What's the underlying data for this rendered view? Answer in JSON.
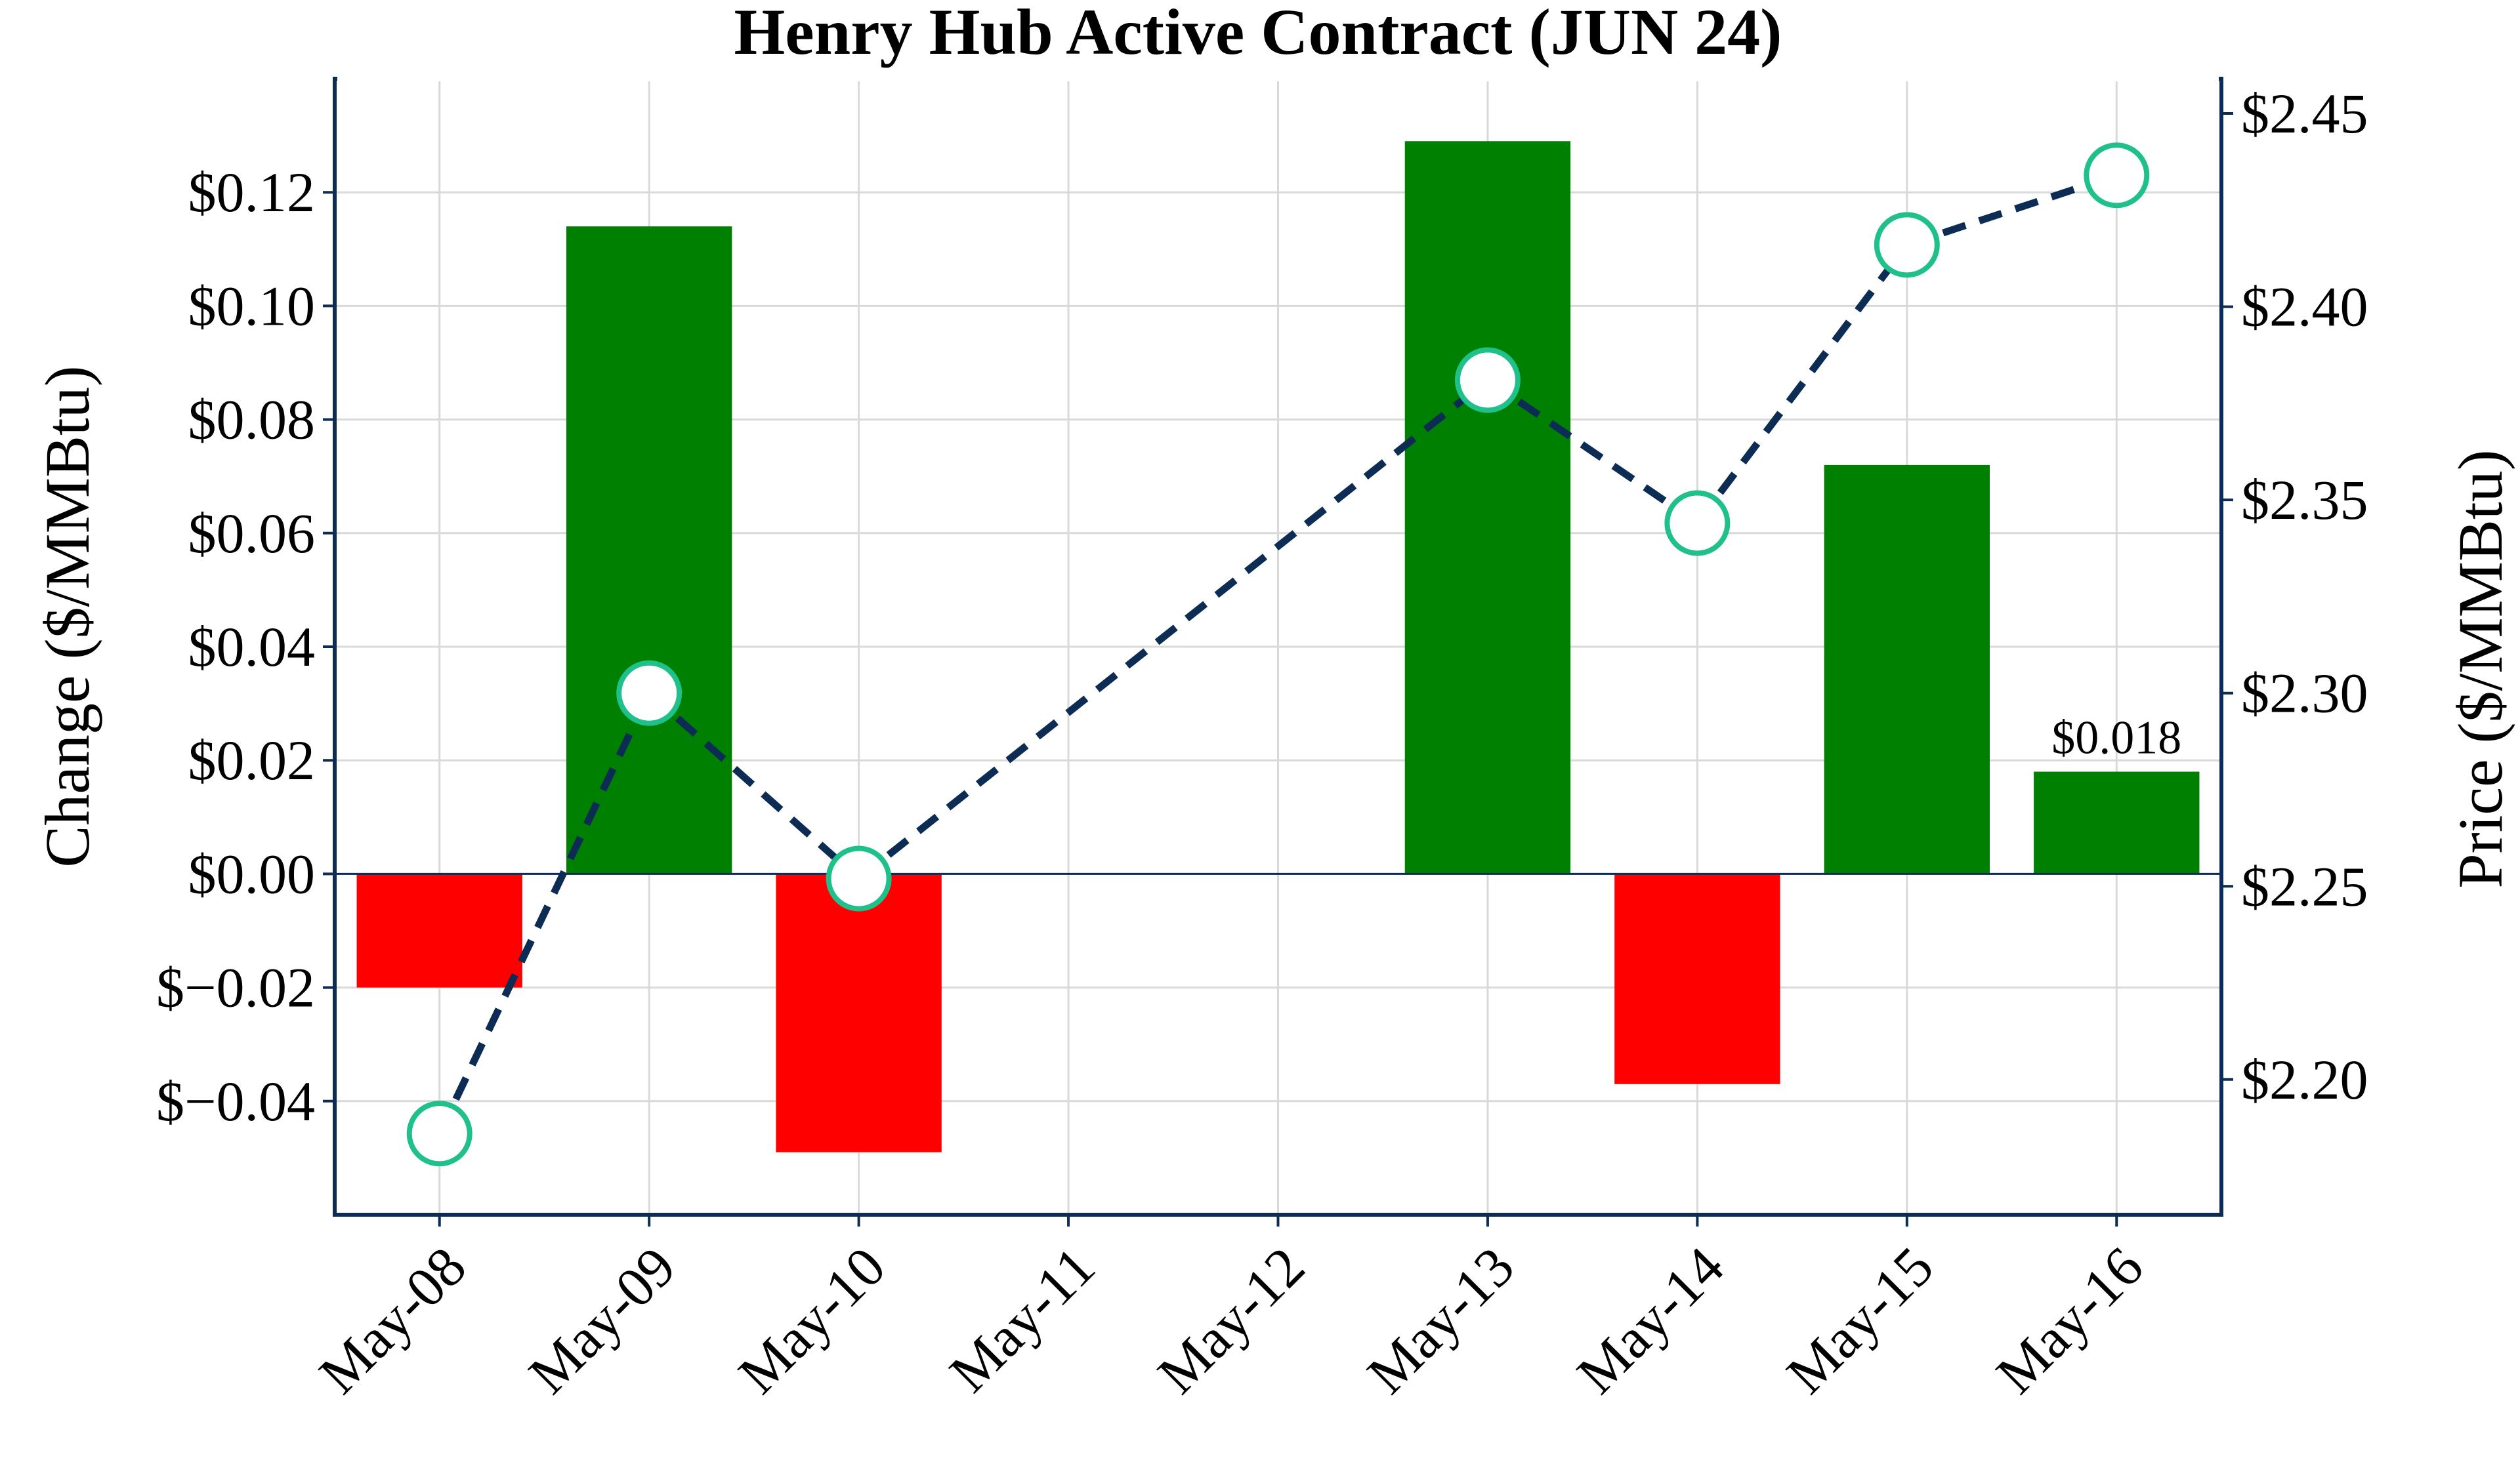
{
  "chart_data": {
    "type": "bar",
    "title": "Henry Hub Active Contract (JUN 24)",
    "xlabel": "",
    "ylabel_left": "Change ($/MMBtu)",
    "ylabel_right": "Price ($/MMBtu)",
    "categories": [
      "May-08",
      "May-09",
      "May-10",
      "May-11",
      "May-12",
      "May-13",
      "May-14",
      "May-15",
      "May-16"
    ],
    "series": [
      {
        "type": "bar",
        "axis": "left",
        "values": [
          -0.02,
          0.114,
          -0.049,
          null,
          null,
          0.129,
          -0.037,
          0.072,
          0.018
        ],
        "positive_color": "#008000",
        "negative_color": "#ff0000"
      },
      {
        "type": "line",
        "axis": "right",
        "style": "dashed",
        "marker": "open-circle",
        "line_color": "#0d2c54",
        "marker_edge_color": "#20c08a",
        "values": [
          2.186,
          2.3,
          2.252,
          null,
          null,
          2.381,
          2.344,
          2.416,
          2.434
        ]
      }
    ],
    "ylim_left": [
      -0.06,
      0.14
    ],
    "ylim_right": [
      2.165,
      2.459
    ],
    "yticks_left": [
      "$0.12",
      "$0.10",
      "$0.08",
      "$0.06",
      "$0.04",
      "$0.02",
      "$0.00",
      "$−0.02",
      "$−0.04"
    ],
    "yticks_right": [
      "$2.45",
      "$2.40",
      "$2.35",
      "$2.30",
      "$2.25",
      "$2.20"
    ],
    "annotations": [
      {
        "category": "May-16",
        "text": "$0.018"
      }
    ],
    "grid": true,
    "legend": "none",
    "colors": {
      "frame": "#0d2c54",
      "grid": "#d9d9d9",
      "zero_line": "#0d2c54"
    }
  }
}
